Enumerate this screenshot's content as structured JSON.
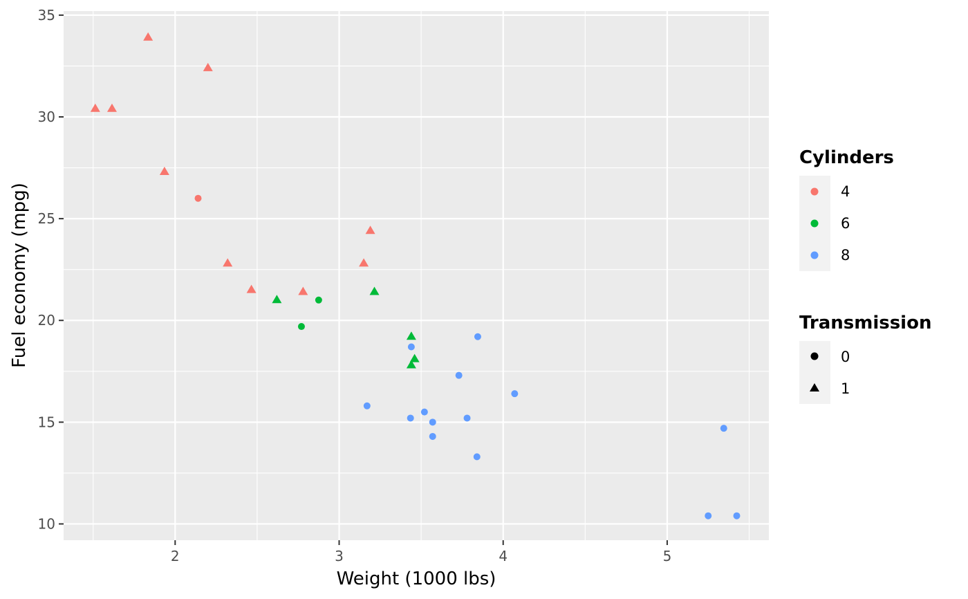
{
  "chart_data": {
    "type": "scatter",
    "xlabel": "Weight (1000 lbs)",
    "ylabel": "Fuel economy (mpg)",
    "xlim": [
      1.32,
      5.62
    ],
    "ylim": [
      9.2,
      35.2
    ],
    "x_ticks": [
      2,
      3,
      4,
      5
    ],
    "y_ticks": [
      10,
      15,
      20,
      25,
      30,
      35
    ],
    "x_minor": [
      1.5,
      2.5,
      3.5,
      4.5,
      5.5
    ],
    "y_minor": [
      12.5,
      17.5,
      22.5,
      27.5,
      32.5
    ],
    "grid": true,
    "legend_position": "right",
    "colors": {
      "4": "#F8766D",
      "6": "#00BA38",
      "8": "#619CFF"
    },
    "legends": [
      {
        "title": "Cylinders",
        "items": [
          {
            "label": "4",
            "color": "#F8766D",
            "shape": "circle"
          },
          {
            "label": "6",
            "color": "#00BA38",
            "shape": "circle"
          },
          {
            "label": "8",
            "color": "#619CFF",
            "shape": "circle"
          }
        ]
      },
      {
        "title": "Transmission",
        "items": [
          {
            "label": "0",
            "color": "#000000",
            "shape": "circle"
          },
          {
            "label": "1",
            "color": "#000000",
            "shape": "triangle"
          }
        ]
      }
    ],
    "points": [
      {
        "x": 2.62,
        "y": 21.0,
        "cyl": "6",
        "am": "1"
      },
      {
        "x": 2.875,
        "y": 21.0,
        "cyl": "6",
        "am": "0"
      },
      {
        "x": 2.32,
        "y": 22.8,
        "cyl": "4",
        "am": "1"
      },
      {
        "x": 3.215,
        "y": 21.4,
        "cyl": "6",
        "am": "1"
      },
      {
        "x": 3.44,
        "y": 18.7,
        "cyl": "8",
        "am": "0"
      },
      {
        "x": 2.77,
        "y": 19.7,
        "cyl": "6",
        "am": "0"
      },
      {
        "x": 3.57,
        "y": 14.3,
        "cyl": "8",
        "am": "0"
      },
      {
        "x": 3.19,
        "y": 24.4,
        "cyl": "4",
        "am": "1"
      },
      {
        "x": 3.15,
        "y": 22.8,
        "cyl": "4",
        "am": "1"
      },
      {
        "x": 3.44,
        "y": 19.2,
        "cyl": "6",
        "am": "1"
      },
      {
        "x": 3.44,
        "y": 17.8,
        "cyl": "6",
        "am": "1"
      },
      {
        "x": 4.07,
        "y": 16.4,
        "cyl": "8",
        "am": "0"
      },
      {
        "x": 3.73,
        "y": 17.3,
        "cyl": "8",
        "am": "0"
      },
      {
        "x": 3.78,
        "y": 15.2,
        "cyl": "8",
        "am": "0"
      },
      {
        "x": 5.25,
        "y": 10.4,
        "cyl": "8",
        "am": "0"
      },
      {
        "x": 5.424,
        "y": 10.4,
        "cyl": "8",
        "am": "0"
      },
      {
        "x": 5.345,
        "y": 14.7,
        "cyl": "8",
        "am": "0"
      },
      {
        "x": 2.2,
        "y": 32.4,
        "cyl": "4",
        "am": "1"
      },
      {
        "x": 1.615,
        "y": 30.4,
        "cyl": "4",
        "am": "1"
      },
      {
        "x": 1.835,
        "y": 33.9,
        "cyl": "4",
        "am": "1"
      },
      {
        "x": 2.14,
        "y": 26.0,
        "cyl": "4",
        "am": "0"
      },
      {
        "x": 3.52,
        "y": 15.5,
        "cyl": "8",
        "am": "0"
      },
      {
        "x": 3.435,
        "y": 15.2,
        "cyl": "8",
        "am": "0"
      },
      {
        "x": 3.84,
        "y": 13.3,
        "cyl": "8",
        "am": "0"
      },
      {
        "x": 3.845,
        "y": 19.2,
        "cyl": "8",
        "am": "0"
      },
      {
        "x": 1.935,
        "y": 27.3,
        "cyl": "4",
        "am": "1"
      },
      {
        "x": 2.465,
        "y": 21.5,
        "cyl": "4",
        "am": "1"
      },
      {
        "x": 1.513,
        "y": 30.4,
        "cyl": "4",
        "am": "1"
      },
      {
        "x": 3.17,
        "y": 15.8,
        "cyl": "8",
        "am": "0"
      },
      {
        "x": 3.46,
        "y": 18.1,
        "cyl": "6",
        "am": "1"
      },
      {
        "x": 3.57,
        "y": 15.0,
        "cyl": "8",
        "am": "0"
      },
      {
        "x": 2.78,
        "y": 21.4,
        "cyl": "4",
        "am": "1"
      }
    ]
  }
}
